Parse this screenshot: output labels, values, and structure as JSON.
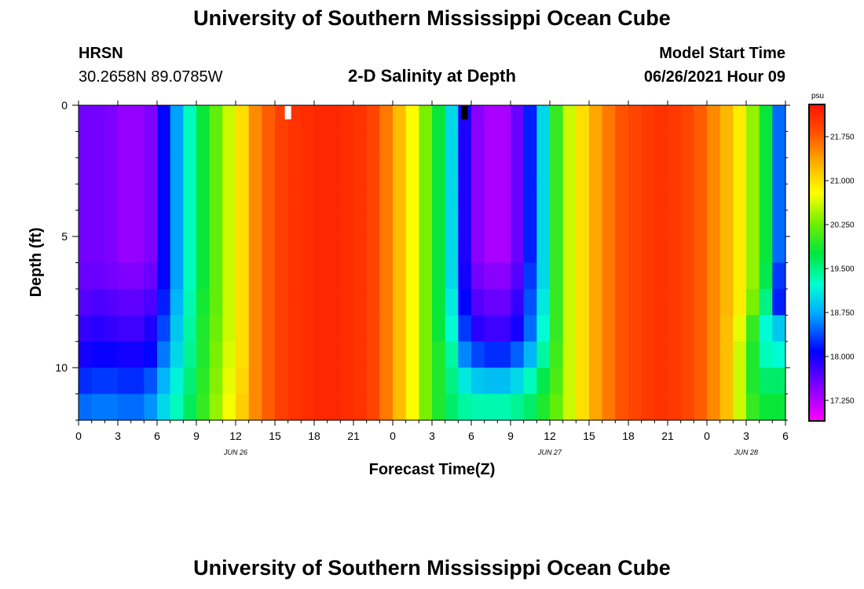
{
  "header": {
    "title": "University of Southern Mississippi Ocean Cube",
    "footer_title": "University of Southern Mississippi Ocean Cube",
    "station": "HRSN",
    "coords": "30.2658N  89.0785W",
    "plot_title": "2-D Salinity at Depth",
    "model_label": "Model Start Time",
    "model_time": "06/26/2021 Hour 09"
  },
  "chart_data": {
    "type": "heatmap",
    "title": "2-D Salinity at Depth",
    "xlabel": "Forecast Time(Z)",
    "ylabel": "Depth (ft)",
    "x_ticks": [
      "0",
      "3",
      "6",
      "9",
      "12",
      "15",
      "18",
      "21",
      "0",
      "3",
      "6",
      "9",
      "12",
      "15",
      "18",
      "21",
      "0",
      "3",
      "6"
    ],
    "x_range_hours": [
      0,
      54
    ],
    "date_labels": [
      {
        "text": "JUN 26",
        "hour": 12
      },
      {
        "text": "JUN 27",
        "hour": 36
      },
      {
        "text": "JUN 28",
        "hour": 51
      }
    ],
    "y_ticks": [
      {
        "text": "0",
        "value": 0
      },
      {
        "text": "5",
        "value": 5
      },
      {
        "text": "10",
        "value": 10
      }
    ],
    "y_range_ft": [
      0,
      12
    ],
    "markers": [
      {
        "hour": 16,
        "color": "#ffffff"
      },
      {
        "hour": 29.5,
        "color": "#000000"
      }
    ],
    "depth_levels": 12,
    "time_steps": 54,
    "colorbar": {
      "unit": "psu",
      "range": [
        16.9,
        22.3
      ],
      "labels": [
        "21.750",
        "21.000",
        "20.250",
        "19.500",
        "18.750",
        "18.000",
        "17.250"
      ],
      "label_values": [
        21.75,
        21.0,
        20.25,
        19.5,
        18.75,
        18.0,
        17.25
      ]
    },
    "surface_salinity": [
      17.55,
      17.55,
      17.5,
      17.4,
      17.4,
      17.5,
      18.1,
      18.7,
      19.3,
      19.8,
      20.2,
      20.6,
      21.0,
      21.5,
      21.75,
      21.95,
      22.05,
      22.1,
      22.15,
      22.15,
      22.1,
      22.05,
      21.9,
      21.6,
      21.2,
      20.8,
      20.3,
      19.8,
      19.0,
      17.95,
      17.45,
      17.3,
      17.3,
      17.6,
      18.2,
      19.0,
      20.0,
      20.6,
      21.0,
      21.35,
      21.6,
      21.8,
      21.9,
      22.0,
      22.05,
      22.0,
      21.9,
      21.75,
      21.5,
      21.25,
      20.9,
      20.4,
      19.8,
      18.5
    ],
    "depth_salinity": [
      [
        17.55,
        17.55,
        17.5,
        17.4,
        17.4,
        17.5,
        18.1,
        18.7,
        19.3,
        19.8,
        20.2,
        20.6,
        21.0,
        21.5,
        21.75,
        21.95,
        22.05,
        22.1,
        22.15,
        22.15,
        22.1,
        22.05,
        21.9,
        21.6,
        21.2,
        20.8,
        20.3,
        19.8,
        19.0,
        17.95,
        17.45,
        17.3,
        17.3,
        17.6,
        18.2,
        19.0,
        20.0,
        20.6,
        21.0,
        21.35,
        21.6,
        21.8,
        21.9,
        22.0,
        22.05,
        22.0,
        21.9,
        21.75,
        21.5,
        21.25,
        20.9,
        20.4,
        19.8,
        18.5
      ],
      [
        17.55,
        17.55,
        17.5,
        17.4,
        17.4,
        17.5,
        18.1,
        18.7,
        19.3,
        19.8,
        20.2,
        20.6,
        21.0,
        21.5,
        21.75,
        21.95,
        22.05,
        22.1,
        22.15,
        22.15,
        22.1,
        22.05,
        21.9,
        21.6,
        21.2,
        20.8,
        20.3,
        19.8,
        19.0,
        17.95,
        17.45,
        17.3,
        17.3,
        17.6,
        18.2,
        19.0,
        20.0,
        20.6,
        21.0,
        21.35,
        21.6,
        21.8,
        21.9,
        22.0,
        22.05,
        22.0,
        21.9,
        21.75,
        21.5,
        21.25,
        20.9,
        20.4,
        19.8,
        18.5
      ],
      [
        17.55,
        17.55,
        17.5,
        17.4,
        17.4,
        17.5,
        18.1,
        18.7,
        19.3,
        19.8,
        20.2,
        20.6,
        21.0,
        21.5,
        21.75,
        21.95,
        22.05,
        22.1,
        22.15,
        22.15,
        22.1,
        22.05,
        21.9,
        21.6,
        21.2,
        20.8,
        20.3,
        19.8,
        19.0,
        17.95,
        17.45,
        17.3,
        17.3,
        17.6,
        18.2,
        19.0,
        20.0,
        20.6,
        21.0,
        21.35,
        21.6,
        21.8,
        21.9,
        22.0,
        22.05,
        22.0,
        21.9,
        21.75,
        21.5,
        21.25,
        20.9,
        20.4,
        19.8,
        18.5
      ],
      [
        17.55,
        17.55,
        17.5,
        17.4,
        17.4,
        17.5,
        18.1,
        18.7,
        19.3,
        19.8,
        20.2,
        20.6,
        21.0,
        21.5,
        21.75,
        21.95,
        22.05,
        22.1,
        22.15,
        22.15,
        22.1,
        22.05,
        21.9,
        21.6,
        21.2,
        20.8,
        20.3,
        19.8,
        19.0,
        17.95,
        17.45,
        17.3,
        17.3,
        17.6,
        18.2,
        19.0,
        20.0,
        20.6,
        21.0,
        21.35,
        21.6,
        21.8,
        21.9,
        22.0,
        22.05,
        22.0,
        21.9,
        21.75,
        21.5,
        21.25,
        20.9,
        20.4,
        19.8,
        18.5
      ],
      [
        17.55,
        17.55,
        17.5,
        17.4,
        17.4,
        17.5,
        18.1,
        18.7,
        19.3,
        19.8,
        20.2,
        20.6,
        21.0,
        21.5,
        21.75,
        21.95,
        22.05,
        22.1,
        22.15,
        22.15,
        22.1,
        22.05,
        21.9,
        21.6,
        21.2,
        20.8,
        20.3,
        19.8,
        19.0,
        17.95,
        17.45,
        17.3,
        17.3,
        17.6,
        18.2,
        19.0,
        20.0,
        20.6,
        21.0,
        21.35,
        21.6,
        21.8,
        21.9,
        22.0,
        22.05,
        22.0,
        21.9,
        21.75,
        21.5,
        21.25,
        20.9,
        20.4,
        19.8,
        18.5
      ],
      [
        17.55,
        17.55,
        17.5,
        17.4,
        17.4,
        17.5,
        18.1,
        18.7,
        19.3,
        19.8,
        20.2,
        20.6,
        21.0,
        21.5,
        21.75,
        21.95,
        22.05,
        22.1,
        22.15,
        22.15,
        22.1,
        22.05,
        21.9,
        21.6,
        21.2,
        20.8,
        20.3,
        19.8,
        19.0,
        17.95,
        17.45,
        17.3,
        17.3,
        17.6,
        18.2,
        19.0,
        20.0,
        20.6,
        21.0,
        21.35,
        21.6,
        21.8,
        21.9,
        22.0,
        22.05,
        22.0,
        21.9,
        21.75,
        21.5,
        21.25,
        20.9,
        20.4,
        19.8,
        18.5
      ],
      [
        17.6,
        17.6,
        17.55,
        17.5,
        17.5,
        17.6,
        18.1,
        18.7,
        19.3,
        19.8,
        20.2,
        20.6,
        21.0,
        21.5,
        21.75,
        21.95,
        22.05,
        22.1,
        22.15,
        22.15,
        22.1,
        22.05,
        21.9,
        21.6,
        21.2,
        20.8,
        20.3,
        19.8,
        19.0,
        18.0,
        17.55,
        17.45,
        17.45,
        17.7,
        18.3,
        19.0,
        20.0,
        20.6,
        21.0,
        21.35,
        21.6,
        21.8,
        21.9,
        22.0,
        22.05,
        22.0,
        21.9,
        21.75,
        21.5,
        21.25,
        20.9,
        20.4,
        19.7,
        18.3
      ],
      [
        17.7,
        17.75,
        17.7,
        17.65,
        17.65,
        17.75,
        18.2,
        18.8,
        19.35,
        19.85,
        20.2,
        20.6,
        21.0,
        21.5,
        21.75,
        21.95,
        22.05,
        22.1,
        22.15,
        22.15,
        22.1,
        22.05,
        21.9,
        21.6,
        21.2,
        20.8,
        20.3,
        19.8,
        19.1,
        18.1,
        17.7,
        17.6,
        17.6,
        17.85,
        18.4,
        19.1,
        20.0,
        20.6,
        21.0,
        21.35,
        21.6,
        21.8,
        21.9,
        22.0,
        22.05,
        22.0,
        21.9,
        21.75,
        21.5,
        21.25,
        20.9,
        20.3,
        19.5,
        18.2
      ],
      [
        17.85,
        17.9,
        17.85,
        17.8,
        17.8,
        17.95,
        18.35,
        18.9,
        19.4,
        19.9,
        20.25,
        20.6,
        21.0,
        21.5,
        21.75,
        21.95,
        22.05,
        22.1,
        22.15,
        22.15,
        22.1,
        22.05,
        21.9,
        21.6,
        21.2,
        20.8,
        20.3,
        19.8,
        19.2,
        18.3,
        17.9,
        17.8,
        17.8,
        18.0,
        18.5,
        19.2,
        20.0,
        20.6,
        21.0,
        21.35,
        21.6,
        21.8,
        21.9,
        22.0,
        22.05,
        22.0,
        21.9,
        21.75,
        21.5,
        21.2,
        20.7,
        20.0,
        19.2,
        18.9
      ],
      [
        18.0,
        18.05,
        18.05,
        18.0,
        18.0,
        18.1,
        18.55,
        19.0,
        19.45,
        19.9,
        20.3,
        20.65,
        21.0,
        21.5,
        21.75,
        21.95,
        22.05,
        22.1,
        22.15,
        22.15,
        22.1,
        22.05,
        21.9,
        21.6,
        21.2,
        20.8,
        20.3,
        19.9,
        19.4,
        18.6,
        18.35,
        18.25,
        18.25,
        18.45,
        18.8,
        19.4,
        20.05,
        20.6,
        21.0,
        21.35,
        21.6,
        21.8,
        21.9,
        22.0,
        22.05,
        22.0,
        21.9,
        21.75,
        21.5,
        21.2,
        20.6,
        19.9,
        19.3,
        19.2
      ],
      [
        18.25,
        18.3,
        18.3,
        18.25,
        18.25,
        18.4,
        18.8,
        19.15,
        19.55,
        19.95,
        20.35,
        20.7,
        21.05,
        21.5,
        21.75,
        21.95,
        22.05,
        22.1,
        22.15,
        22.15,
        22.1,
        22.05,
        21.9,
        21.6,
        21.2,
        20.8,
        20.3,
        19.9,
        19.5,
        19.1,
        18.9,
        18.85,
        18.85,
        19.0,
        19.3,
        19.7,
        20.1,
        20.6,
        21.0,
        21.35,
        21.6,
        21.8,
        21.9,
        22.0,
        22.05,
        22.0,
        21.9,
        21.75,
        21.5,
        21.2,
        20.6,
        19.9,
        19.6,
        19.6
      ],
      [
        18.5,
        18.55,
        18.55,
        18.5,
        18.5,
        18.65,
        19.0,
        19.3,
        19.65,
        20.0,
        20.4,
        20.75,
        21.1,
        21.5,
        21.75,
        21.95,
        22.05,
        22.1,
        22.15,
        22.15,
        22.1,
        22.05,
        21.9,
        21.6,
        21.2,
        20.8,
        20.3,
        19.9,
        19.6,
        19.4,
        19.35,
        19.35,
        19.35,
        19.45,
        19.6,
        19.9,
        20.2,
        20.6,
        21.0,
        21.35,
        21.6,
        21.8,
        21.9,
        22.0,
        22.05,
        22.0,
        21.9,
        21.75,
        21.5,
        21.2,
        20.6,
        20.0,
        19.8,
        19.8
      ]
    ]
  }
}
